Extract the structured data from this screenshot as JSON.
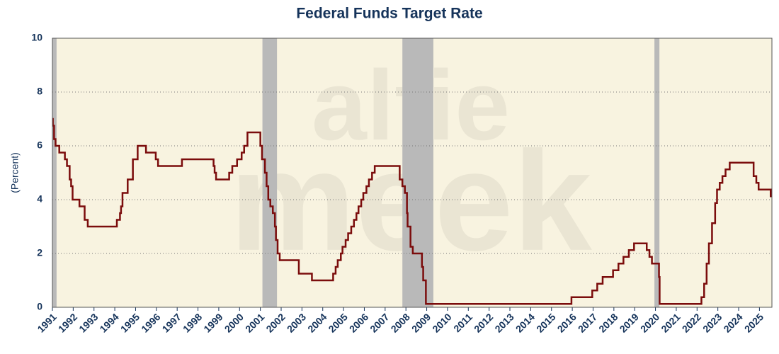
{
  "chart_data": {
    "type": "line",
    "title": "Federal Funds Target Rate",
    "y_label": "(Percent)",
    "watermark": [
      "alfie",
      "meek"
    ],
    "x": [
      1991.0,
      1991.02,
      1991.08,
      1991.15,
      1991.33,
      1991.6,
      1991.7,
      1991.83,
      1991.9,
      1991.97,
      1992.3,
      1992.55,
      1992.7,
      1994.1,
      1994.25,
      1994.3,
      1994.37,
      1994.62,
      1994.87,
      1995.1,
      1995.5,
      1995.97,
      1996.08,
      1997.23,
      1998.75,
      1998.8,
      1998.87,
      1999.5,
      1999.65,
      1999.88,
      2000.1,
      2000.22,
      2000.38,
      2001.0,
      2001.08,
      2001.22,
      2001.3,
      2001.38,
      2001.48,
      2001.6,
      2001.7,
      2001.75,
      2001.83,
      2001.93,
      2002.85,
      2003.48,
      2004.5,
      2004.62,
      2004.72,
      2004.87,
      2004.95,
      2005.1,
      2005.22,
      2005.37,
      2005.5,
      2005.62,
      2005.72,
      2005.85,
      2005.95,
      2006.1,
      2006.22,
      2006.37,
      2006.5,
      2007.7,
      2007.83,
      2007.95,
      2008.05,
      2008.08,
      2008.22,
      2008.33,
      2008.77,
      2008.83,
      2008.96,
      2015.96,
      2016.96,
      2017.2,
      2017.46,
      2017.96,
      2018.22,
      2018.46,
      2018.72,
      2018.97,
      2019.58,
      2019.71,
      2019.83,
      2020.17,
      2020.2,
      2022.21,
      2022.34,
      2022.46,
      2022.57,
      2022.72,
      2022.87,
      2022.96,
      2023.09,
      2023.22,
      2023.37,
      2023.57,
      2024.72,
      2024.85,
      2024.96,
      2025.54
    ],
    "series": [
      {
        "name": "Federal Funds Target Rate",
        "color": "#7b0c0c",
        "values": [
          7.0,
          6.75,
          6.25,
          6.0,
          5.75,
          5.5,
          5.25,
          4.75,
          4.5,
          4.0,
          3.75,
          3.25,
          3.0,
          3.25,
          3.5,
          3.75,
          4.25,
          4.75,
          5.5,
          6.0,
          5.75,
          5.5,
          5.25,
          5.5,
          5.25,
          5.0,
          4.75,
          5.0,
          5.25,
          5.5,
          5.75,
          6.0,
          6.5,
          6.0,
          5.5,
          5.0,
          4.5,
          4.0,
          3.75,
          3.5,
          3.0,
          2.5,
          2.0,
          1.75,
          1.25,
          1.0,
          1.25,
          1.5,
          1.75,
          2.0,
          2.25,
          2.5,
          2.75,
          3.0,
          3.25,
          3.5,
          3.75,
          4.0,
          4.25,
          4.5,
          4.75,
          5.0,
          5.25,
          4.75,
          4.5,
          4.25,
          3.5,
          3.0,
          2.25,
          2.0,
          1.5,
          1.0,
          0.125,
          0.375,
          0.625,
          0.875,
          1.125,
          1.375,
          1.625,
          1.875,
          2.125,
          2.375,
          2.125,
          1.875,
          1.625,
          1.125,
          0.125,
          0.375,
          0.875,
          1.625,
          2.375,
          3.125,
          3.875,
          4.375,
          4.625,
          4.875,
          5.125,
          5.375,
          4.875,
          4.625,
          4.375,
          4.125
        ]
      }
    ],
    "shaded": [
      {
        "start": 1991.0,
        "end": 1991.2
      },
      {
        "start": 2001.1,
        "end": 2001.8
      },
      {
        "start": 2007.83,
        "end": 2009.32
      },
      {
        "start": 2019.95,
        "end": 2020.19
      }
    ],
    "shade_color": "#b9b9b9",
    "background": "#f8f3e0",
    "xlim": [
      1991,
      2025.6
    ],
    "ylim": [
      0,
      10
    ],
    "xticks": [
      1991,
      1992,
      1993,
      1994,
      1995,
      1996,
      1997,
      1998,
      1999,
      2000,
      2001,
      2002,
      2003,
      2004,
      2005,
      2006,
      2007,
      2008,
      2009,
      2010,
      2011,
      2012,
      2013,
      2014,
      2015,
      2016,
      2017,
      2018,
      2019,
      2020,
      2021,
      2022,
      2023,
      2024,
      2025
    ],
    "yticks": [
      0,
      2,
      4,
      6,
      8,
      10
    ],
    "grid": true,
    "step": true
  }
}
